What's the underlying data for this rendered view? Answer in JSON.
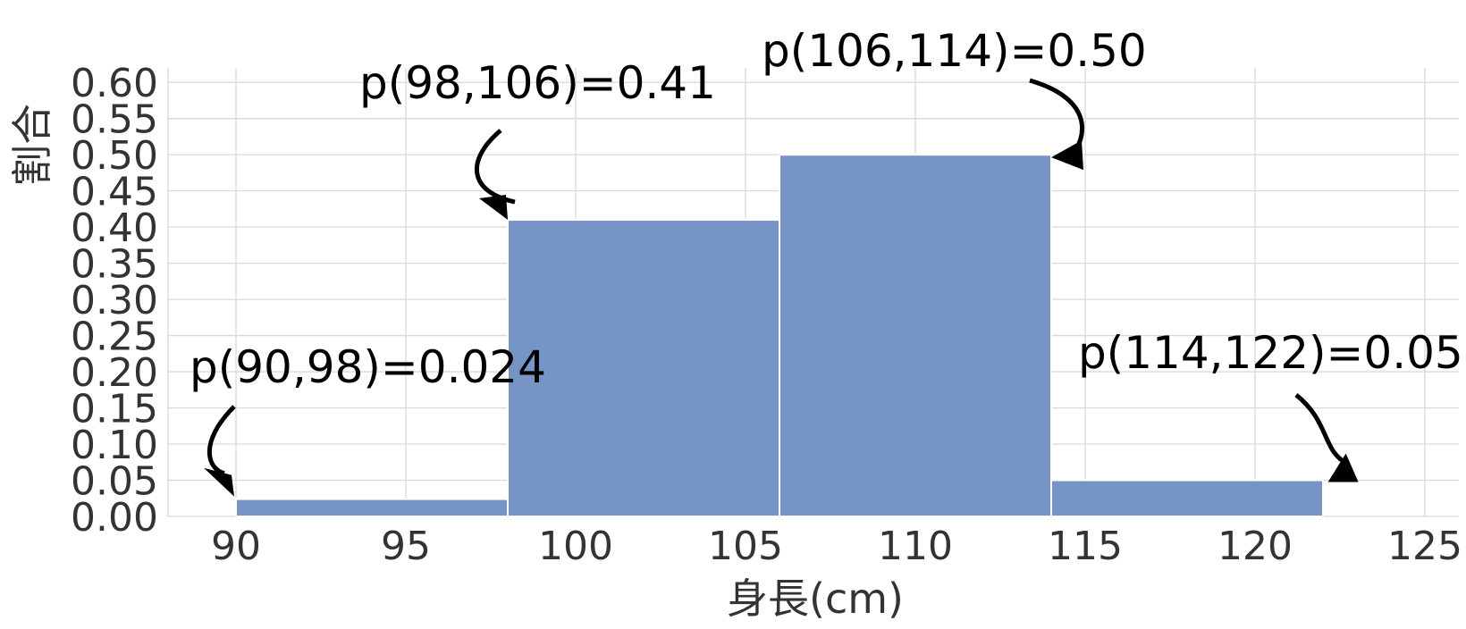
{
  "chart_data": {
    "type": "bar",
    "xlabel": "身長(cm)",
    "ylabel": "割合",
    "xlim": [
      88,
      126
    ],
    "ylim": [
      0,
      0.62
    ],
    "x_ticks": [
      90,
      95,
      100,
      105,
      110,
      115,
      120,
      125
    ],
    "y_ticks": [
      "0.00",
      "0.05",
      "0.10",
      "0.15",
      "0.20",
      "0.25",
      "0.30",
      "0.35",
      "0.40",
      "0.45",
      "0.50",
      "0.55",
      "0.60"
    ],
    "grid": true,
    "bar_color": "#6f8fc3",
    "bins": [
      {
        "start": 90,
        "end": 98,
        "value": 0.024
      },
      {
        "start": 98,
        "end": 106,
        "value": 0.41
      },
      {
        "start": 106,
        "end": 114,
        "value": 0.5
      },
      {
        "start": 114,
        "end": 122,
        "value": 0.05
      }
    ],
    "annotations": [
      {
        "text": "p(90,98)=0.024",
        "target_x": 89.5,
        "target_y": 0.03
      },
      {
        "text": "p(98,106)=0.41",
        "target_x": 98,
        "target_y": 0.41
      },
      {
        "text": "p(106,114)=0.50",
        "target_x": 114,
        "target_y": 0.5
      },
      {
        "text": "p(114,122)=0.05",
        "target_x": 122.2,
        "target_y": 0.05
      }
    ]
  }
}
